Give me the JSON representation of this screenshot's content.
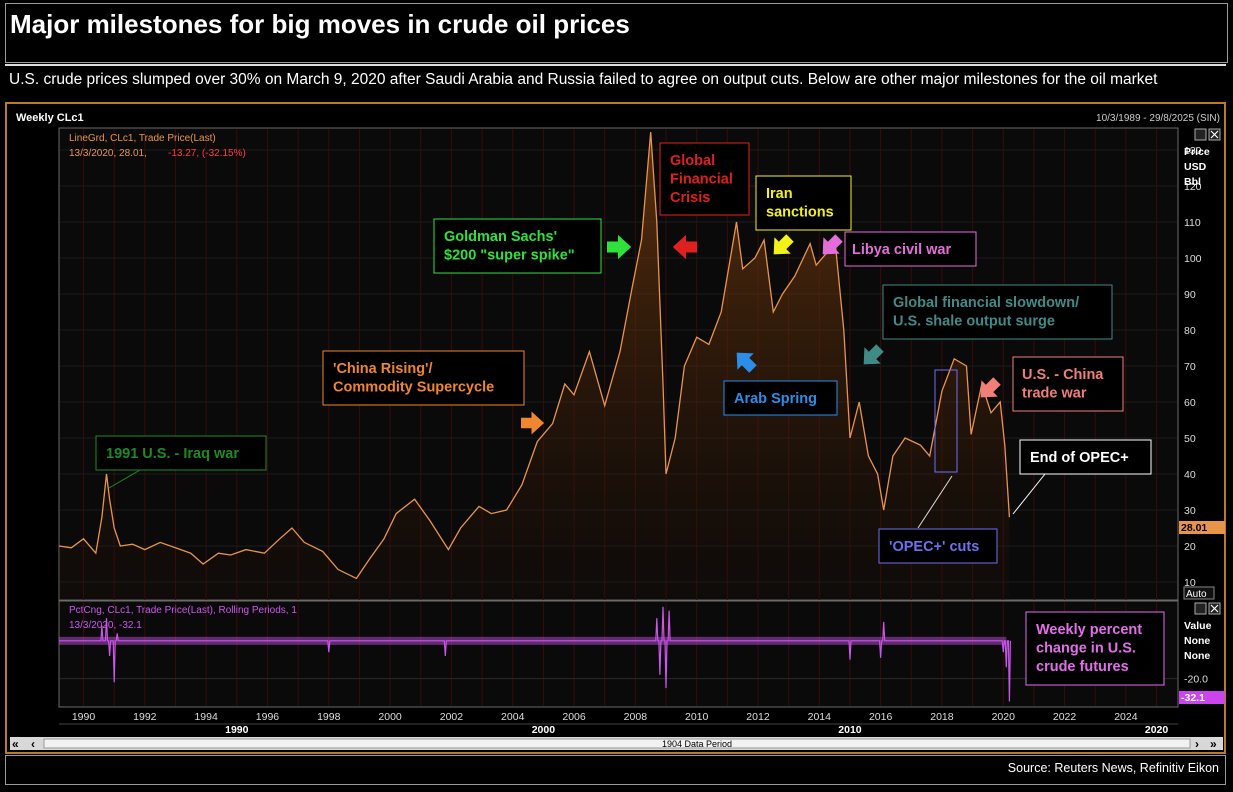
{
  "title": "Major milestones for big moves in crude oil prices",
  "subtitle": "U.S. crude prices slumped over 30% on March 9, 2020 after Saudi Arabia and Russia failed to agree on output cuts. Below are other major milestones for the oil market",
  "source": "Source: Reuters News, Refinitiv Eikon",
  "colors": {
    "price_line": "#e8954a",
    "pct_line": "#cc55ee",
    "frame": "#b97a2e",
    "last_price_box": "#e8954a",
    "last_pct_box": "#cc44ee"
  },
  "terminal": {
    "header_left": "Weekly CLc1",
    "header_right": "10/3/1989 - 29/8/2025 (SIN)",
    "upper_legend_line1": "LineGrd, CLc1, Trade Price(Last)",
    "upper_legend_line2_prefix": "13/3/2020, 28.01,",
    "upper_legend_line2_change": "-13.27, (-32.15%)",
    "lower_legend_line1": "PctCng, CLc1, Trade Price(Last), Rolling Periods, 1",
    "lower_legend_line2": "13/3/2020, -32.1",
    "upper_axis_title": [
      "Price",
      "USD",
      "Bbl"
    ],
    "lower_axis_title": [
      "Value",
      "None",
      "None"
    ],
    "auto_label": "Auto",
    "last_price_label": "28.01",
    "last_pct_label": "-32.1",
    "lower_tick_label": "-20.0",
    "scroll_label": "1904 Data Period",
    "decade_labels": [
      "1990",
      "2000",
      "2010",
      "2020"
    ],
    "icons": [
      "checkbox-icon",
      "close-icon",
      "rewind-icon",
      "scroll-left-icon",
      "scroll-right-icon",
      "fast-forward-icon"
    ]
  },
  "chart_data": [
    {
      "type": "line",
      "title": "",
      "ylabel": "Price USD Bbl",
      "xlim": [
        1989.2,
        2025.7
      ],
      "ylim": [
        5,
        135
      ],
      "x_ticks": [
        1990,
        1992,
        1994,
        1996,
        1998,
        2000,
        2002,
        2004,
        2006,
        2008,
        2010,
        2012,
        2014,
        2016,
        2018,
        2020,
        2022,
        2024
      ],
      "y_ticks": [
        10,
        20,
        30,
        40,
        50,
        60,
        70,
        80,
        90,
        100,
        110,
        120,
        130
      ],
      "series": [
        {
          "values_are": "weekly CLc1 closes (approximate, read from chart)",
          "x": [
            1989.2,
            1989.6,
            1990.0,
            1990.4,
            1990.6,
            1990.75,
            1990.85,
            1991.0,
            1991.2,
            1991.6,
            1992.0,
            1992.5,
            1993.0,
            1993.5,
            1993.9,
            1994.4,
            1994.8,
            1995.3,
            1995.9,
            1996.4,
            1996.8,
            1997.2,
            1997.8,
            1998.3,
            1998.9,
            1999.3,
            1999.8,
            2000.2,
            2000.8,
            2001.3,
            2001.9,
            2002.3,
            2002.9,
            2003.3,
            2003.8,
            2004.3,
            2004.8,
            2005.3,
            2005.7,
            2006.0,
            2006.5,
            2007.0,
            2007.5,
            2007.9,
            2008.2,
            2008.5,
            2008.7,
            2008.9,
            2009.0,
            2009.3,
            2009.6,
            2010.0,
            2010.4,
            2010.8,
            2011.3,
            2011.5,
            2011.9,
            2012.2,
            2012.5,
            2012.8,
            2013.2,
            2013.7,
            2013.9,
            2014.3,
            2014.5,
            2014.8,
            2015.0,
            2015.3,
            2015.6,
            2015.9,
            2016.1,
            2016.4,
            2016.8,
            2017.3,
            2017.6,
            2018.0,
            2018.4,
            2018.8,
            2018.95,
            2019.3,
            2019.6,
            2019.9,
            2020.05,
            2020.2
          ],
          "y": [
            20,
            19.5,
            22,
            18,
            28,
            40,
            33,
            25,
            20,
            20.5,
            19,
            21,
            19.5,
            18,
            15,
            18,
            17.5,
            19,
            18,
            22,
            25,
            21,
            18.5,
            13.5,
            11,
            16,
            22,
            29,
            33,
            27,
            19,
            25,
            31,
            29,
            30,
            37,
            49,
            54,
            65,
            62,
            74,
            59,
            74,
            92,
            105,
            135,
            110,
            65,
            40,
            50,
            70,
            78,
            76,
            85,
            110,
            97,
            100,
            105,
            85,
            90,
            95,
            104,
            98,
            102,
            106,
            80,
            50,
            60,
            45,
            40,
            30,
            45,
            50,
            48,
            45,
            63,
            72,
            70,
            51,
            65,
            57,
            60,
            48,
            28.01
          ]
        }
      ]
    },
    {
      "type": "line",
      "title": "",
      "ylabel": "Value None None",
      "ylim": [
        -35,
        20
      ],
      "y_ticks": [
        -20
      ],
      "series": [
        {
          "values_are": "weekly percent change (approximate, read from chart)",
          "x": [
            1989.2,
            1990.6,
            1990.75,
            1990.85,
            1991.0,
            1991.1,
            1998.0,
            2001.8,
            2008.7,
            2008.8,
            2008.9,
            2009.0,
            2009.1,
            2015.0,
            2016.0,
            2016.1,
            2020.0,
            2020.1,
            2020.2
          ],
          "y": [
            0,
            8,
            12,
            -8,
            -22,
            4,
            -6,
            -8,
            12,
            -18,
            18,
            -25,
            16,
            -10,
            -9,
            10,
            -6,
            -14,
            -32.1
          ]
        }
      ]
    }
  ],
  "annotations": [
    {
      "label": "1991 U.S. - Iraq war",
      "color": "#1e8a24"
    },
    {
      "label": "'China Rising'/\nCommodity Supercycle",
      "color": "#f0862e"
    },
    {
      "label": "Goldman Sachs'\n$200 \"super spike\"",
      "color": "#2ee23a"
    },
    {
      "label": "Global\nFinancial\nCrisis",
      "color": "#e02020"
    },
    {
      "label": "Iran\nsanctions",
      "color": "#f2f21a"
    },
    {
      "label": "Libya civil war",
      "color": "#e46ed8"
    },
    {
      "label": "Arab Spring",
      "color": "#2c8ee8"
    },
    {
      "label": "Global financial slowdown/\nU.S. shale output surge",
      "color": "#3f8c86"
    },
    {
      "label": "U.S. - China\ntrade war",
      "color": "#f07f7a"
    },
    {
      "label": "End of OPEC+",
      "color": "#ffffff"
    },
    {
      "label": "'OPEC+' cuts",
      "color": "#6f6ff2"
    },
    {
      "label": "Weekly percent\nchange in U.S.\ncrude futures",
      "color": "#e26ee8"
    }
  ]
}
